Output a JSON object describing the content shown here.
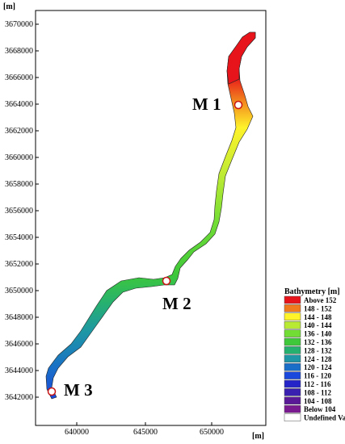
{
  "map": {
    "y_unit": "[m]",
    "x_unit": "[m]",
    "y_ticks": [
      "3670000",
      "3668000",
      "3666000",
      "3664000",
      "3662000",
      "3660000",
      "3658000",
      "3656000",
      "3654000",
      "3652000",
      "3650000",
      "3648000",
      "3646000",
      "3644000",
      "3642000"
    ],
    "x_ticks": [
      "640000",
      "645000",
      "650000"
    ],
    "stations": [
      {
        "label": "M 1",
        "x": 651900,
        "y": 3664000
      },
      {
        "label": "M 2",
        "x": 646700,
        "y": 3651000
      },
      {
        "label": "M 3",
        "x": 638000,
        "y": 3642900
      }
    ],
    "colors": {
      "above152": "#e8141b",
      "c148": "#f07a1e",
      "c144": "#fff32a",
      "c140": "#b8ea34",
      "c136": "#72dd35",
      "c132": "#3ec83a",
      "c128": "#26b070",
      "c124": "#1e96a6",
      "c120": "#1a6ec8",
      "c116": "#1a48dc",
      "c112": "#2424c8",
      "c108": "#3a20b0",
      "c104": "#5a1a98",
      "below104": "#7a1a90"
    }
  },
  "legend": {
    "title": "Bathymetry [m]",
    "entries": [
      {
        "label": "Above 152",
        "color": "#e8141b"
      },
      {
        "label": "148 - 152",
        "color": "#f07a1e"
      },
      {
        "label": "144 - 148",
        "color": "#fff32a"
      },
      {
        "label": "140 - 144",
        "color": "#b8ea34"
      },
      {
        "label": "136 - 140",
        "color": "#72dd35"
      },
      {
        "label": "132 - 136",
        "color": "#3ec83a"
      },
      {
        "label": "128 - 132",
        "color": "#26b070"
      },
      {
        "label": "124 - 128",
        "color": "#1e96a6"
      },
      {
        "label": "120 - 124",
        "color": "#1a6ec8"
      },
      {
        "label": "116 - 120",
        "color": "#1a48dc"
      },
      {
        "label": "112 - 116",
        "color": "#2424c8"
      },
      {
        "label": "108 - 112",
        "color": "#3a20b0"
      },
      {
        "label": "104 - 108",
        "color": "#5a1a98"
      },
      {
        "label": "Below 104",
        "color": "#7a1a90"
      },
      {
        "label": "Undefined Va",
        "color": "#ffffff"
      }
    ]
  }
}
